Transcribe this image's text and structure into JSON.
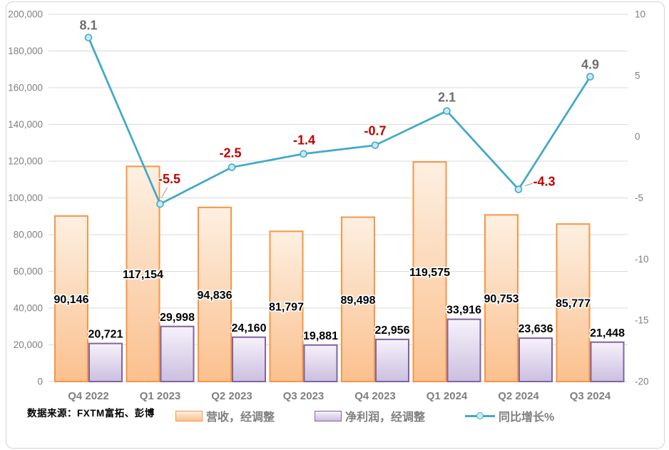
{
  "chart_data": {
    "type": "bar",
    "subtype": "combo-bar-line",
    "title": "",
    "categories": [
      "Q4 2022",
      "Q1 2023",
      "Q2 2023",
      "Q3 2023",
      "Q4 2023",
      "Q1 2024",
      "Q2 2024",
      "Q3 2024"
    ],
    "series": [
      {
        "name": "营收，经调整",
        "type": "bar",
        "axis": "left",
        "values": [
          90146,
          117154,
          94836,
          81797,
          89498,
          119575,
          90753,
          85777
        ],
        "data_labels": [
          "90,146",
          "117,154",
          "94,836",
          "81,797",
          "89,498",
          "119,575",
          "90,753",
          "85,777"
        ],
        "colors": {
          "fill_top": "#FDF0E2",
          "fill_bottom": "#FBC08E",
          "border": "#F79646"
        },
        "label_position": "inside-center"
      },
      {
        "name": "净利润，经调整",
        "type": "bar",
        "axis": "left",
        "values": [
          20721,
          29998,
          24160,
          19881,
          22956,
          33916,
          23636,
          21448
        ],
        "data_labels": [
          "20,721",
          "29,998",
          "24,160",
          "19,881",
          "22,956",
          "33,916",
          "23,636",
          "21,448"
        ],
        "colors": {
          "fill_top": "#F6F2FB",
          "fill_bottom": "#CBBFDF",
          "border": "#8064A2"
        },
        "label_position": "outside-top"
      },
      {
        "name": "同比增长%",
        "type": "line",
        "axis": "right",
        "values": [
          8.1,
          -5.5,
          -2.5,
          -1.4,
          -0.7,
          2.1,
          -4.3,
          4.9
        ],
        "data_labels": [
          "8.1",
          "-5.5",
          "-2.5",
          "-1.4",
          "-0.7",
          "2.1",
          "-4.3",
          "4.9"
        ],
        "colors": {
          "line": "#41A9C9",
          "marker_fill": "#C9E9F4",
          "label_positive": "#6E6E6E",
          "label_negative": "#C00000"
        },
        "label_offsets": [
          [
            0,
            -11
          ],
          [
            13,
            -29
          ],
          [
            -2,
            -14
          ],
          [
            1,
            -13
          ],
          [
            0,
            -14
          ],
          [
            0,
            -13
          ],
          [
            36,
            -5
          ],
          [
            0,
            -11
          ]
        ],
        "leader_lines": [
          null,
          [
            [
              2,
              -9
            ],
            [
              10,
              -23
            ]
          ],
          null,
          null,
          null,
          null,
          [
            [
              9,
              -5
            ],
            [
              22,
              -9
            ]
          ],
          null
        ]
      }
    ],
    "left_axis": {
      "min": 0,
      "max": 200000,
      "step": 20000
    },
    "right_axis": {
      "min": -20,
      "max": 10,
      "step": 5
    },
    "grid": true,
    "legend_position": "bottom"
  },
  "source_note": "数据来源：FXTM富拓、彭博",
  "colors": {
    "grid": "#D9D9D9",
    "axis_text": "#7F7F7F",
    "category_text": "#7F7F7F",
    "bar_label": "#000000",
    "leader": "#999999",
    "frame_border": "#D4D4D4",
    "background": "#FFFFFF"
  }
}
